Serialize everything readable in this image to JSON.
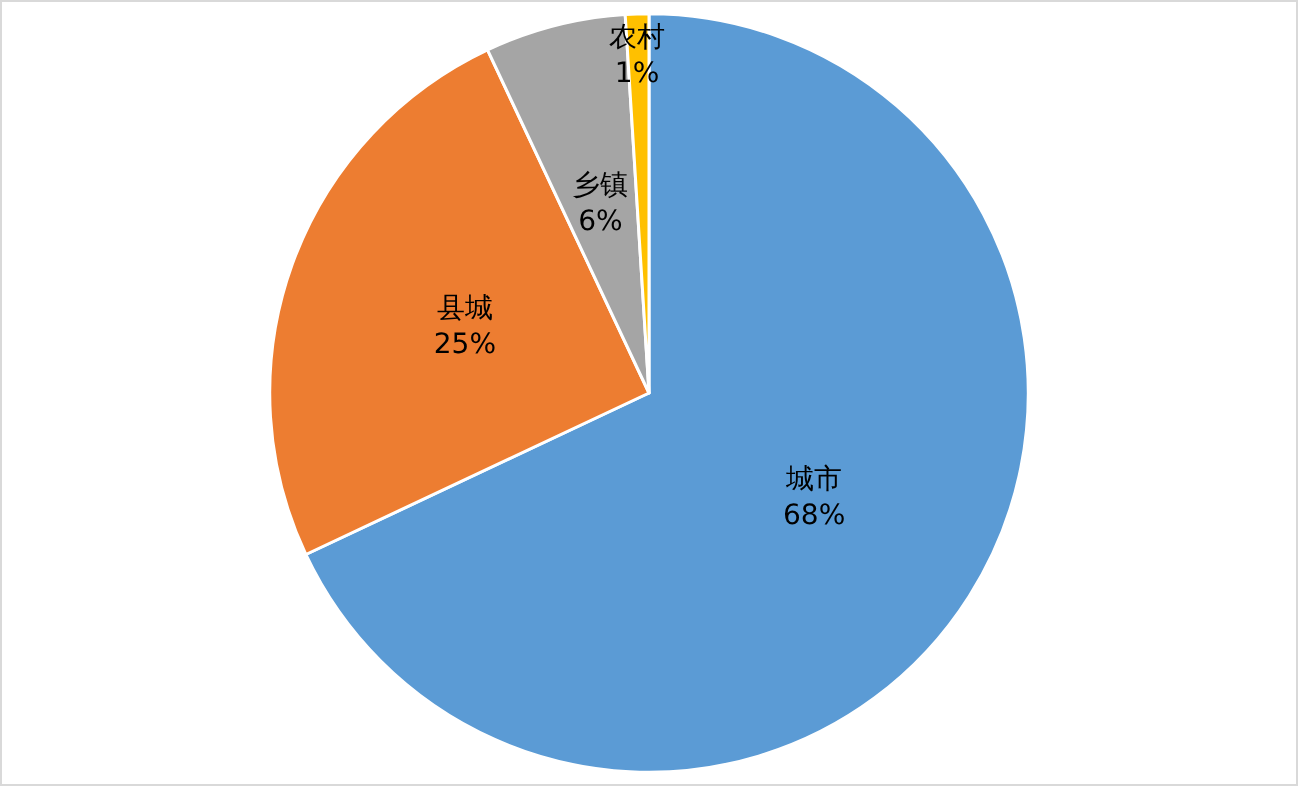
{
  "chart_data": {
    "type": "pie",
    "categories": [
      "城市",
      "县城",
      "乡镇",
      "农村"
    ],
    "values": [
      68,
      25,
      6,
      1
    ],
    "colors": [
      "#5b9bd5",
      "#ed7d31",
      "#a5a5a5",
      "#ffc000"
    ],
    "value_labels": [
      "68%",
      "25%",
      "6%",
      "1%"
    ],
    "legend": false
  }
}
